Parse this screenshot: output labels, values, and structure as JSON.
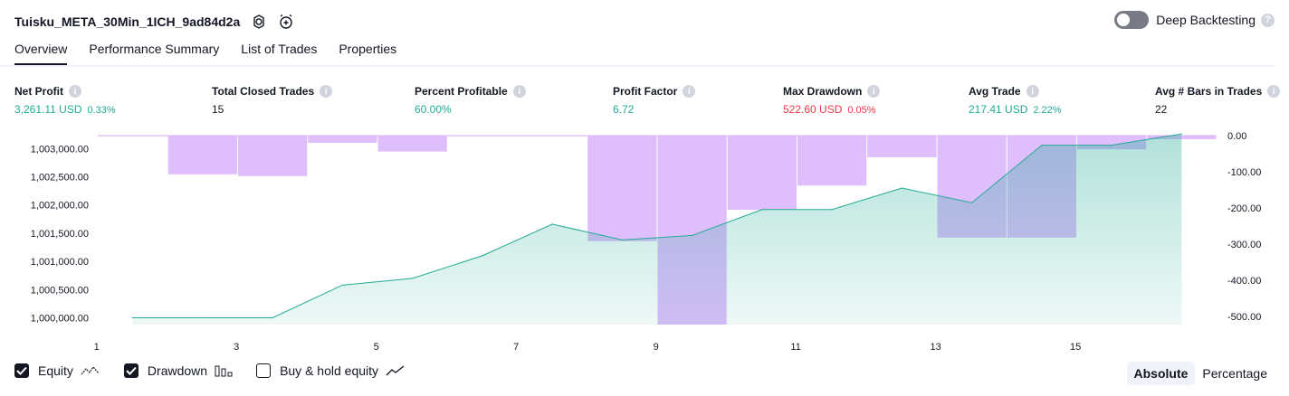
{
  "header": {
    "strategy_name": "Tuisku_META_30Min_1ICH_9ad84d2a",
    "deep_backtesting_label": "Deep Backtesting"
  },
  "tabs": [
    {
      "label": "Overview",
      "active": true
    },
    {
      "label": "Performance Summary",
      "active": false
    },
    {
      "label": "List of Trades",
      "active": false
    },
    {
      "label": "Properties",
      "active": false
    }
  ],
  "metrics": [
    {
      "label": "Net Profit",
      "value": "3,261.11 USD",
      "pct": "0.33%",
      "tone": "pos"
    },
    {
      "label": "Total Closed Trades",
      "value": "15",
      "pct": "",
      "tone": "neu"
    },
    {
      "label": "Percent Profitable",
      "value": "60.00%",
      "pct": "",
      "tone": "pos"
    },
    {
      "label": "Profit Factor",
      "value": "6.72",
      "pct": "",
      "tone": "pos"
    },
    {
      "label": "Max Drawdown",
      "value": "522.60 USD",
      "pct": "0.05%",
      "tone": "neg"
    },
    {
      "label": "Avg Trade",
      "value": "217.41 USD",
      "pct": "2.22%",
      "tone": "pos"
    },
    {
      "label": "Avg # Bars in Trades",
      "value": "22",
      "pct": "",
      "tone": "neu"
    }
  ],
  "legend": {
    "equity_label": "Equity",
    "drawdown_label": "Drawdown",
    "buyhold_label": "Buy & hold equity"
  },
  "modes": {
    "absolute_label": "Absolute",
    "percentage_label": "Percentage",
    "selected": "Absolute"
  },
  "colors": {
    "equity_line": "#22ab94",
    "equity_fill": "#22ab94",
    "drawdown": "#d9b3fb",
    "positive": "#22ab94",
    "negative": "#f23645"
  },
  "chart_data": {
    "type": "area",
    "x": [
      1,
      2,
      3,
      4,
      5,
      6,
      7,
      8,
      9,
      10,
      11,
      12,
      13,
      14,
      15,
      16
    ],
    "x_ticks": [
      "1",
      "3",
      "5",
      "7",
      "9",
      "11",
      "13",
      "15"
    ],
    "left_ticks": [
      "1,003,000.00",
      "1,002,500.00",
      "1,002,000.00",
      "1,001,500.00",
      "1,001,000.00",
      "1,000,500.00",
      "1,000,000.00"
    ],
    "right_ticks": [
      "0.00",
      "-100.00",
      "-200.00",
      "-300.00",
      "-400.00",
      "-500.00"
    ],
    "ylim_left": [
      999880,
      1003230
    ],
    "ylim_right": [
      -522.6,
      0
    ],
    "series": [
      {
        "name": "Equity",
        "axis": "left",
        "values": [
          1000000,
          1000000,
          1000000,
          1000580,
          1000700,
          1001100,
          1001660,
          1001380,
          1001460,
          1001920,
          1001920,
          1002300,
          1002040,
          1003060,
          1003060,
          1003261
        ]
      },
      {
        "name": "Drawdown",
        "axis": "right",
        "type": "bar",
        "values": [
          -2,
          -107,
          -112,
          -20,
          -44,
          -2,
          -2,
          -292,
          -522.6,
          -205,
          -138,
          -60,
          -282,
          -282,
          -38,
          -10
        ]
      }
    ],
    "grid": false
  }
}
